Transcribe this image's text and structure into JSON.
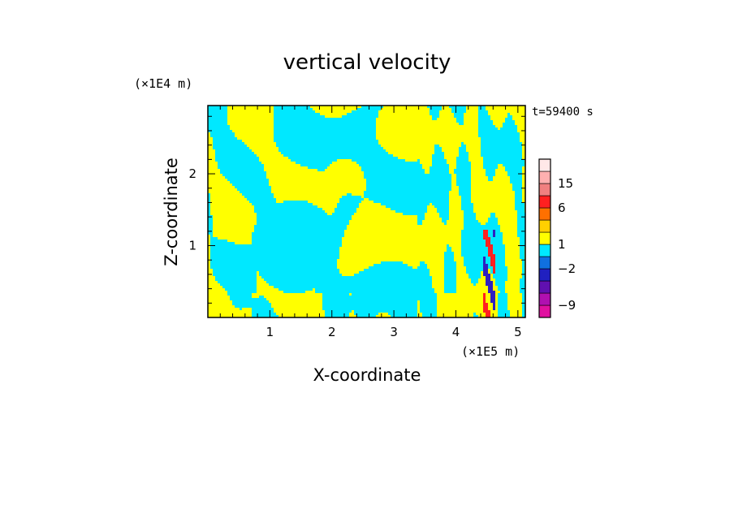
{
  "chart_data": {
    "type": "heatmap",
    "title": "vertical velocity",
    "xlabel": "X-coordinate",
    "ylabel": "Z-coordinate",
    "x_unit": "(×1E5 m)",
    "y_unit": "(×1E4 m)",
    "time_label": "t=59400 s",
    "xlim": [
      0,
      5.12
    ],
    "ylim": [
      0,
      2.95
    ],
    "x_ticks": [
      "1",
      "2",
      "3",
      "4",
      "5"
    ],
    "x_tick_values": [
      1,
      2,
      3,
      4,
      5
    ],
    "y_ticks": [
      "1",
      "2"
    ],
    "y_tick_values": [
      1,
      2
    ],
    "colors": {
      "positive": "#ffff00",
      "negative": "#00e8ff",
      "strong_positive": "#ff2020",
      "strong_negative": "#3020c0"
    },
    "colorbar": {
      "levels": [
        -12,
        -9,
        -6,
        -4,
        -2,
        -1,
        1,
        2,
        4,
        6,
        9,
        15,
        20,
        25
      ],
      "colors": [
        "#e010a0",
        "#b010b0",
        "#6010b0",
        "#2020c0",
        "#1070e0",
        "#00e8ff",
        "#ffff00",
        "#ffd000",
        "#ff7000",
        "#ff2020",
        "#f08080",
        "#ffb0b0",
        "#ffe8e8"
      ],
      "tick_labels": [
        "15",
        "6",
        "1",
        "−2",
        "−9"
      ],
      "tick_values": [
        15,
        6,
        1,
        -2,
        -9
      ]
    }
  }
}
